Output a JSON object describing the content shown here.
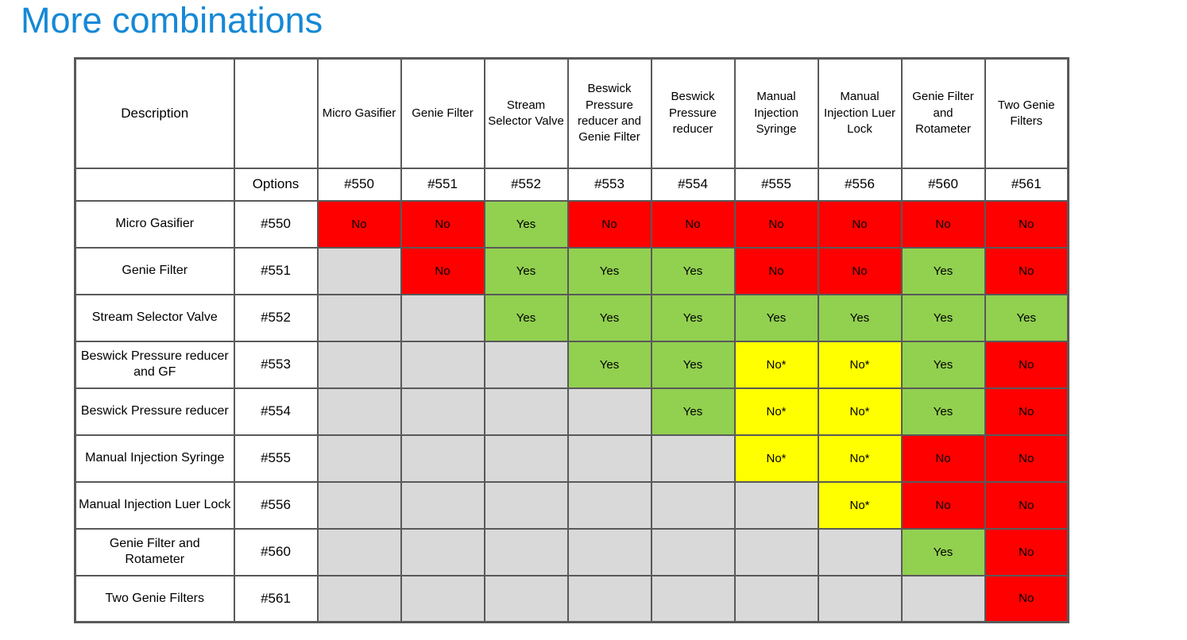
{
  "page": {
    "title": "More combinations",
    "title_color": "#1588D6",
    "background": "#FFFFFF"
  },
  "table": {
    "corner_header": "Description",
    "options_label": "Options",
    "columns": [
      {
        "name": "Micro Gasifier",
        "option": "#550"
      },
      {
        "name": "Genie Filter",
        "option": "#551"
      },
      {
        "name": "Stream Selector Valve",
        "option": "#552"
      },
      {
        "name": "Beswick Pressure reducer and Genie Filter",
        "option": "#553"
      },
      {
        "name": "Beswick Pressure reducer",
        "option": "#554"
      },
      {
        "name": "Manual Injection Syringe",
        "option": "#555"
      },
      {
        "name": "Manual Injection Luer Lock",
        "option": "#556"
      },
      {
        "name": "Genie Filter and Rotameter",
        "option": "#560"
      },
      {
        "name": "Two Genie Filters",
        "option": "#561"
      }
    ],
    "rows": [
      {
        "label": "Micro Gasifier",
        "option": "#550",
        "cells": [
          "No",
          "No",
          "Yes",
          "No",
          "No",
          "No",
          "No",
          "No",
          "No"
        ]
      },
      {
        "label": "Genie Filter",
        "option": "#551",
        "cells": [
          "",
          "No",
          "Yes",
          "Yes",
          "Yes",
          "No",
          "No",
          "Yes",
          "No"
        ]
      },
      {
        "label": "Stream Selector Valve",
        "option": "#552",
        "cells": [
          "",
          "",
          "Yes",
          "Yes",
          "Yes",
          "Yes",
          "Yes",
          "Yes",
          "Yes"
        ]
      },
      {
        "label": "Beswick Pressure reducer and GF",
        "option": "#553",
        "cells": [
          "",
          "",
          "",
          "Yes",
          "Yes",
          "No*",
          "No*",
          "Yes",
          "No"
        ]
      },
      {
        "label": "Beswick Pressure reducer",
        "option": "#554",
        "cells": [
          "",
          "",
          "",
          "",
          "Yes",
          "No*",
          "No*",
          "Yes",
          "No"
        ]
      },
      {
        "label": "Manual Injection Syringe",
        "option": "#555",
        "cells": [
          "",
          "",
          "",
          "",
          "",
          "No*",
          "No*",
          "No",
          "No"
        ]
      },
      {
        "label": "Manual Injection Luer Lock",
        "option": "#556",
        "cells": [
          "",
          "",
          "",
          "",
          "",
          "",
          "No*",
          "No",
          "No"
        ]
      },
      {
        "label": "Genie Filter and Rotameter",
        "option": "#560",
        "cells": [
          "",
          "",
          "",
          "",
          "",
          "",
          "",
          "Yes",
          "No"
        ]
      },
      {
        "label": "Two Genie Filters",
        "option": "#561",
        "cells": [
          "",
          "",
          "",
          "",
          "",
          "",
          "",
          "",
          "No"
        ]
      }
    ],
    "colors": {
      "yes_bg": "#92D050",
      "no_bg": "#FF0000",
      "no_star_bg": "#FFFF00",
      "empty_bg": "#D9D9D9",
      "border": "#595959",
      "cell_text": "#000000"
    },
    "layout": {
      "label_col_width": 200,
      "options_col_width": 105,
      "data_col_width": 105
    }
  }
}
